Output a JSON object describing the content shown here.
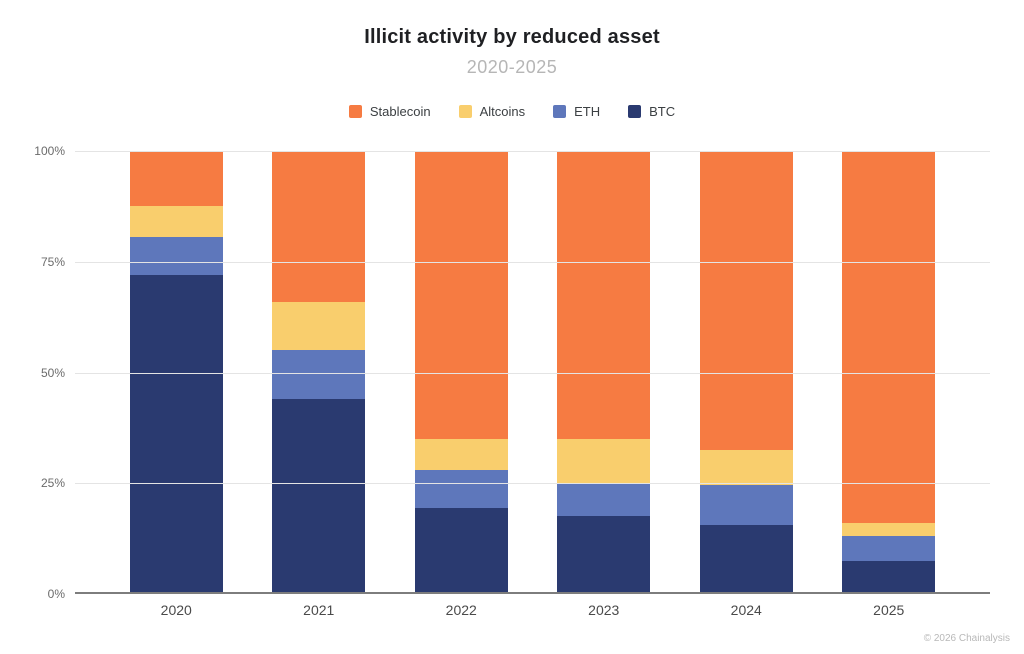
{
  "header": {
    "title": "Illicit activity by reduced asset",
    "subtitle": "2020-2025"
  },
  "footer": {
    "credit": "© 2026 Chainalysis"
  },
  "colors": {
    "stablecoin": "#F67B42",
    "altcoins": "#F9CE6D",
    "eth": "#5E77BB",
    "btc": "#2A3A70",
    "gridline": "#E4E4E4",
    "axis_line": "#7D7D7D",
    "title_text": "#1F2023",
    "subtitle_text": "#B6B6B6",
    "tick_text": "#6B6B6B"
  },
  "legend": [
    {
      "label": "Stablecoin",
      "color": "#F67B42"
    },
    {
      "label": "Altcoins",
      "color": "#F9CE6D"
    },
    {
      "label": "ETH",
      "color": "#5E77BB"
    },
    {
      "label": "BTC",
      "color": "#2A3A70"
    }
  ],
  "chart_data": {
    "type": "bar",
    "stacked": true,
    "title": "Illicit activity by reduced asset",
    "subtitle": "2020-2025",
    "unit": "%",
    "categories": [
      "2020",
      "2021",
      "2022",
      "2023",
      "2024",
      "2025"
    ],
    "series": [
      {
        "name": "BTC",
        "color": "#2A3A70",
        "values": [
          72,
          44,
          19.5,
          17.5,
          15.5,
          7.5
        ]
      },
      {
        "name": "ETH",
        "color": "#5E77BB",
        "values": [
          8.5,
          11,
          8.5,
          7.5,
          9,
          5.5
        ]
      },
      {
        "name": "Altcoins",
        "color": "#F9CE6D",
        "values": [
          7,
          11,
          7,
          10,
          8,
          3
        ]
      },
      {
        "name": "Stablecoin",
        "color": "#F67B42",
        "values": [
          12.5,
          34,
          65,
          65,
          67.5,
          84
        ]
      }
    ],
    "ylim": [
      0,
      100
    ],
    "yticks": [
      0,
      25,
      50,
      75,
      100
    ],
    "ytick_labels": [
      "0%",
      "25%",
      "50%",
      "75%",
      "100%"
    ],
    "xlabel": "",
    "ylabel": "",
    "grid": true,
    "legend_position": "top"
  }
}
